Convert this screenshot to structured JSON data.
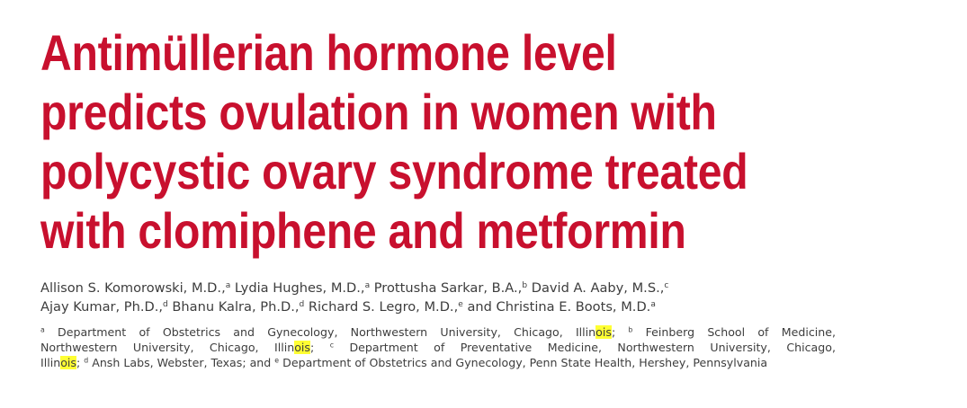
{
  "colors": {
    "title": "#c8102e",
    "body_text": "#3d3d3d",
    "highlight": "#ffff33",
    "background": "#ffffff"
  },
  "title_lines": [
    "Antimüllerian hormone level",
    "predicts ovulation in women with",
    "polycystic ovary syndrome treated",
    "with clomiphene and metformin"
  ],
  "authors": {
    "line1": [
      {
        "name": "Allison S. Komorowski, M.D.,",
        "sup": "a"
      },
      {
        "name": "Lydia Hughes, M.D.,",
        "sup": "a"
      },
      {
        "name": "Prottusha Sarkar, B.A.,",
        "sup": "b"
      },
      {
        "name": "David A. Aaby, M.S.,",
        "sup": "c"
      }
    ],
    "line2": [
      {
        "name": "Ajay Kumar, Ph.D.,",
        "sup": "d"
      },
      {
        "name": "Bhanu Kalra, Ph.D.,",
        "sup": "d"
      },
      {
        "name": "Richard S. Legro, M.D.,",
        "sup": "e"
      },
      {
        "name": "and Christina E. Boots, M.D.",
        "sup": "a"
      }
    ]
  },
  "affiliations": {
    "l1_sup_a": "a",
    "l1_a": "Department of Obstetrics and Gynecology, Northwestern University, Chicago, Illin",
    "l1_hl": "ois",
    "l1_b": ";",
    "l1_sup_b": "b",
    "l1_c": "Feinberg School of Medicine,",
    "l2_a": "Northwestern University, Chicago, Illin",
    "l2_hl": "ois",
    "l2_b": ";",
    "l2_sup_c": "c",
    "l2_c": "Department of Preventative Medicine, Northwestern University, Chicago,",
    "l3_a": "Illin",
    "l3_hl": "ois",
    "l3_b": ";",
    "l3_sup_d": "d",
    "l3_c": "Ansh Labs, Webster, Texas; and",
    "l3_sup_e": "e",
    "l3_d": "Department of Obstetrics and Gynecology, Penn State Health, Hershey, Pennsylvania"
  }
}
